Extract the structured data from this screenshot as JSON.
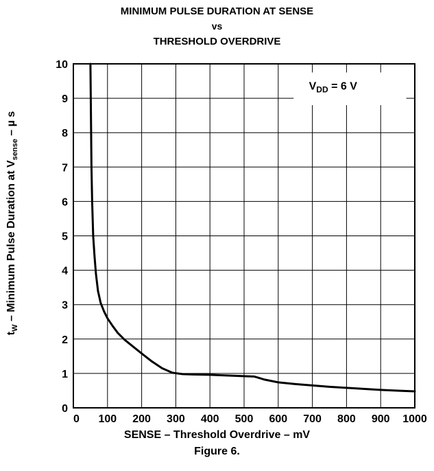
{
  "chart_data": {
    "type": "line",
    "title": "MINIMUM PULSE DURATION AT SENSE",
    "subtitle": "vs",
    "title2": "THRESHOLD OVERDRIVE",
    "xlabel": "SENSE – Threshold Overdrive – mV",
    "ylabel": {
      "prefix": "t",
      "prefix_sub": "W",
      "middle": " – Minimum Pulse Duration at  V",
      "middle_sub": "sense",
      "suffix": " – µ s"
    },
    "xlim": [
      0,
      1000
    ],
    "ylim": [
      0,
      10
    ],
    "x_ticks": [
      "0",
      "100",
      "200",
      "300",
      "400",
      "500",
      "600",
      "700",
      "800",
      "900",
      "1000"
    ],
    "y_ticks": [
      "0",
      "1",
      "2",
      "3",
      "4",
      "5",
      "6",
      "7",
      "8",
      "9",
      "10"
    ],
    "grid": true,
    "annotation": {
      "main": "V",
      "sub": "DD",
      "rest": " = 6 V",
      "position": "top-right"
    },
    "series": [
      {
        "x": [
          50,
          51,
          52,
          53,
          55,
          58,
          62,
          66,
          72,
          80,
          90,
          100,
          115,
          130,
          150,
          175,
          200,
          230,
          260,
          290,
          320,
          350,
          400,
          450,
          500,
          530,
          560,
          600,
          650,
          700,
          750,
          800,
          850,
          900,
          950,
          1000
        ],
        "y": [
          10,
          9.0,
          8.0,
          7.0,
          6.0,
          5.0,
          4.4,
          3.9,
          3.4,
          3.05,
          2.8,
          2.6,
          2.38,
          2.18,
          1.98,
          1.78,
          1.58,
          1.35,
          1.15,
          1.02,
          0.98,
          0.97,
          0.96,
          0.94,
          0.92,
          0.91,
          0.82,
          0.74,
          0.69,
          0.65,
          0.61,
          0.58,
          0.55,
          0.52,
          0.5,
          0.48
        ]
      }
    ]
  },
  "caption": "Figure 6."
}
